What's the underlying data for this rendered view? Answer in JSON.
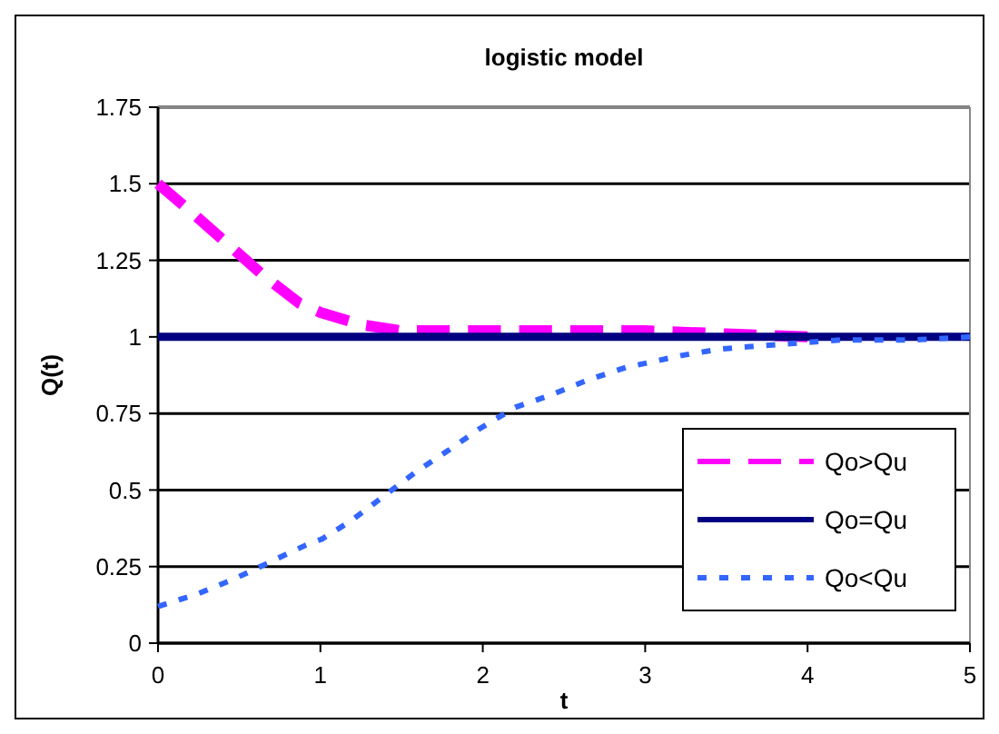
{
  "chart_data": {
    "type": "line",
    "title": "logistic model",
    "xlabel": "t",
    "ylabel": "Q(t)",
    "xlim": [
      0,
      5
    ],
    "xticks": [
      0,
      1,
      2,
      3,
      4,
      5
    ],
    "ylim": [
      0,
      1.75
    ],
    "yticks": [
      0,
      0.25,
      0.5,
      0.75,
      1,
      1.25,
      1.5,
      1.75
    ],
    "grid": "y",
    "legend": "right",
    "marker": "none",
    "series": [
      {
        "name": "Qo>Qu",
        "color": "#ff00ff",
        "line_style": "dashed",
        "x": [
          0,
          0.2,
          0.5,
          0.65,
          0.87,
          1,
          1.25,
          1.5,
          2,
          2.5,
          3,
          3.5,
          4
        ],
        "values": [
          1.5,
          1.41,
          1.27,
          1.2,
          1.11,
          1.08,
          1.04,
          1.02,
          1.02,
          1.02,
          1.02,
          1.01,
          1
        ]
      },
      {
        "name": "Qo=Qu",
        "color": "#000080",
        "line_style": "solid",
        "x": [
          0,
          5
        ],
        "values": [
          1,
          1
        ]
      },
      {
        "name": "Qo<Qu",
        "color": "#3366ff",
        "line_style": "dotted",
        "x": [
          0,
          0.24,
          0.47,
          0.67,
          0.91,
          1.01,
          1.19,
          1.39,
          1.59,
          1.79,
          1.98,
          2.2,
          2.42,
          2.65,
          2.88,
          3.23,
          3.46,
          3.68,
          3.95,
          4.21,
          4.65,
          5
        ],
        "values": [
          0.12,
          0.16,
          0.21,
          0.26,
          0.32,
          0.34,
          0.4,
          0.48,
          0.56,
          0.63,
          0.7,
          0.77,
          0.81,
          0.86,
          0.9,
          0.94,
          0.96,
          0.97,
          0.98,
          0.99,
          0.99,
          1
        ]
      }
    ]
  }
}
